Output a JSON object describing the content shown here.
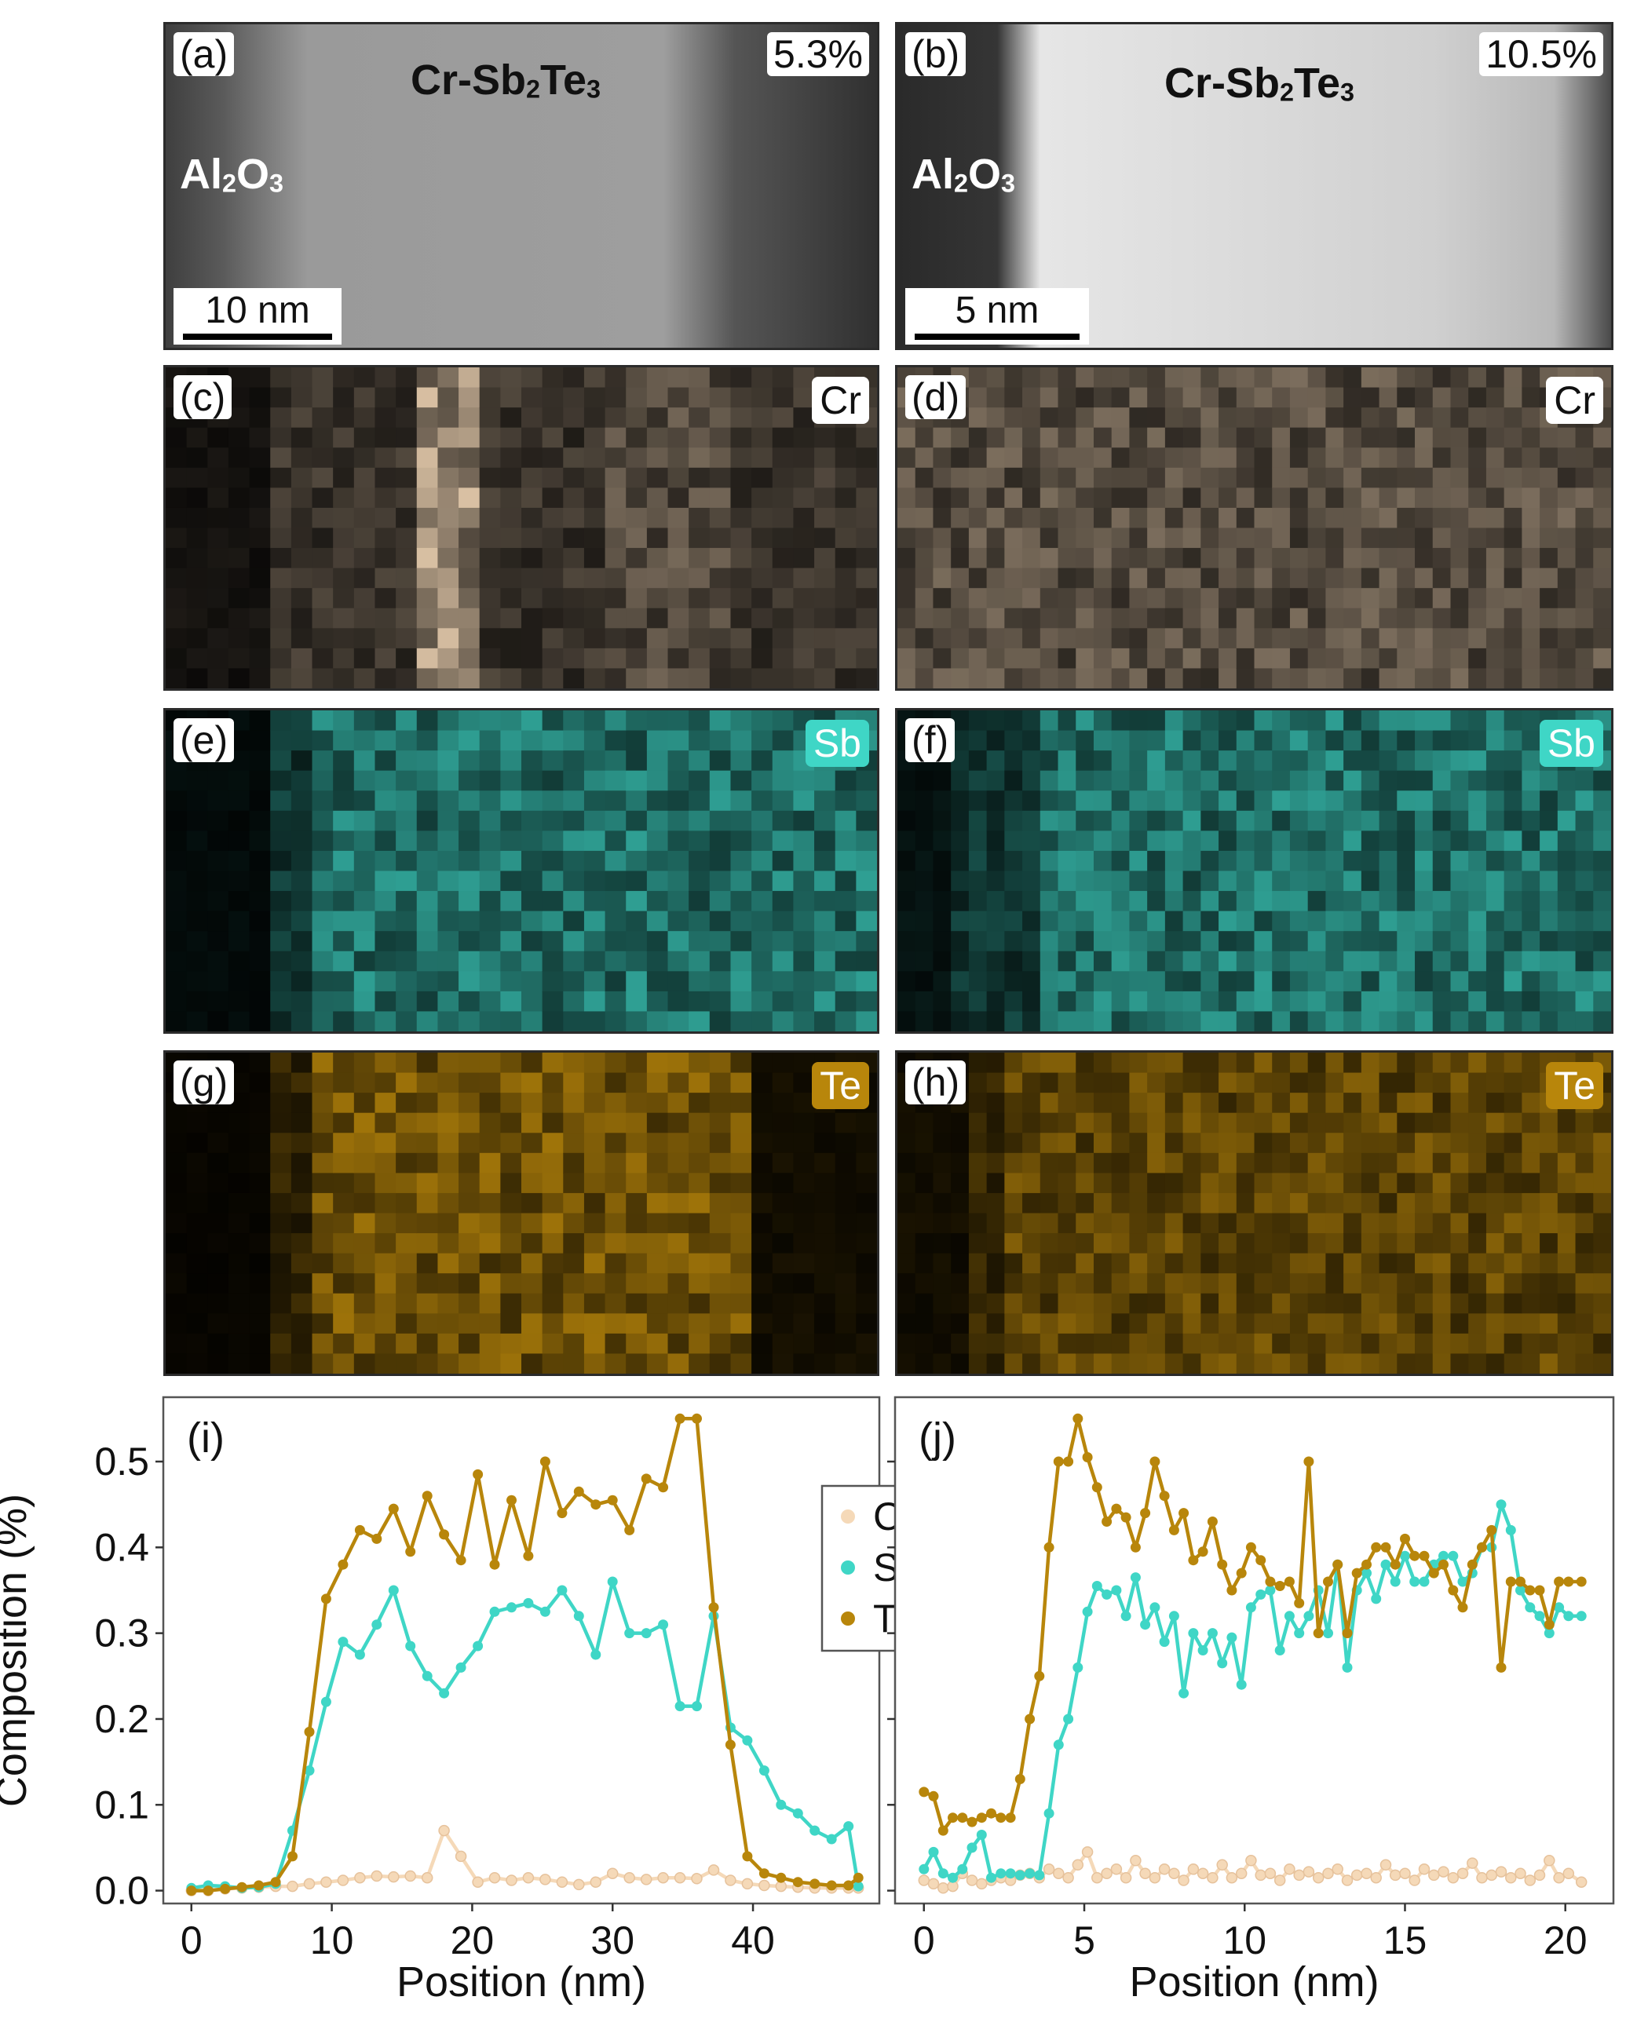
{
  "tem": {
    "a": {
      "tag": "(a)",
      "percent": "5.3%",
      "film": "Cr-Sb",
      "film_sub1": "2",
      "film_mid": "Te",
      "film_sub2": "3",
      "oxide": "Al",
      "oxide_sub1": "2",
      "oxide_mid": "O",
      "oxide_sub2": "3",
      "scale": "10 nm"
    },
    "b": {
      "tag": "(b)",
      "percent": "10.5%",
      "film": "Cr-Sb",
      "film_sub1": "2",
      "film_mid": "Te",
      "film_sub2": "3",
      "oxide": "Al",
      "oxide_sub1": "2",
      "oxide_mid": "O",
      "oxide_sub2": "3",
      "scale": "5 nm"
    }
  },
  "maps": {
    "c": {
      "tag": "(c)",
      "element": "Cr"
    },
    "d": {
      "tag": "(d)",
      "element": "Cr"
    },
    "e": {
      "tag": "(e)",
      "element": "Sb"
    },
    "f": {
      "tag": "(f)",
      "element": "Sb"
    },
    "g": {
      "tag": "(g)",
      "element": "Te"
    },
    "h": {
      "tag": "(h)",
      "element": "Te"
    }
  },
  "colors": {
    "Cr": "#f5d9b8",
    "Sb": "#3fd6c6",
    "Te": "#b8860b"
  },
  "chart_data": [
    {
      "type": "line",
      "panel_label": "(i)",
      "xlabel": "Position (nm)",
      "ylabel": "Composition (%)",
      "xlim": [
        -2,
        49
      ],
      "ylim": [
        -0.015,
        0.575
      ],
      "xticks": [
        0,
        10,
        20,
        30,
        40
      ],
      "yticks": [
        0.0,
        0.1,
        0.2,
        0.3,
        0.4,
        0.5
      ],
      "ytick_labels": [
        "0.0",
        "0.1",
        "0.2",
        "0.3",
        "0.4",
        "0.5"
      ],
      "legend": {
        "position": "top-right",
        "entries": [
          "Cr",
          "Sb",
          "Te"
        ]
      },
      "series": [
        {
          "name": "Cr",
          "color": "#f5d9b8",
          "x": [
            0,
            1.2,
            2.4,
            3.6,
            4.8,
            6.0,
            7.2,
            8.4,
            9.6,
            10.8,
            12.0,
            13.2,
            14.4,
            15.6,
            16.8,
            18.0,
            19.2,
            20.4,
            21.6,
            22.8,
            24.0,
            25.2,
            26.4,
            27.6,
            28.8,
            30.0,
            31.2,
            32.4,
            33.6,
            34.8,
            36.0,
            37.2,
            38.4,
            39.6,
            40.8,
            42.0,
            43.2,
            44.4,
            45.6,
            46.8,
            47.5
          ],
          "y": [
            0.0,
            0.0,
            0.002,
            0.003,
            0.004,
            0.005,
            0.005,
            0.008,
            0.01,
            0.012,
            0.015,
            0.017,
            0.016,
            0.017,
            0.015,
            0.07,
            0.04,
            0.01,
            0.015,
            0.012,
            0.015,
            0.013,
            0.01,
            0.007,
            0.01,
            0.02,
            0.015,
            0.013,
            0.015,
            0.015,
            0.014,
            0.024,
            0.012,
            0.008,
            0.006,
            0.005,
            0.004,
            0.003,
            0.003,
            0.003,
            0.003
          ]
        },
        {
          "name": "Sb",
          "color": "#3fd6c6",
          "x": [
            0,
            1.2,
            2.4,
            3.6,
            4.8,
            6.0,
            7.2,
            8.4,
            9.6,
            10.8,
            12.0,
            13.2,
            14.4,
            15.6,
            16.8,
            18.0,
            19.2,
            20.4,
            21.6,
            22.8,
            24.0,
            25.2,
            26.4,
            27.6,
            28.8,
            30.0,
            31.2,
            32.4,
            33.6,
            34.8,
            36.0,
            37.2,
            38.4,
            39.6,
            40.8,
            42.0,
            43.2,
            44.4,
            45.6,
            46.8,
            47.5
          ],
          "y": [
            0.003,
            0.006,
            0.005,
            0.003,
            0.004,
            0.008,
            0.07,
            0.14,
            0.22,
            0.29,
            0.275,
            0.31,
            0.35,
            0.285,
            0.25,
            0.23,
            0.26,
            0.285,
            0.325,
            0.33,
            0.335,
            0.325,
            0.35,
            0.32,
            0.275,
            0.36,
            0.3,
            0.3,
            0.31,
            0.215,
            0.215,
            0.32,
            0.19,
            0.175,
            0.14,
            0.1,
            0.09,
            0.07,
            0.06,
            0.075,
            0.005
          ]
        },
        {
          "name": "Te",
          "color": "#b8860b",
          "x": [
            0,
            1.2,
            2.4,
            3.6,
            4.8,
            6.0,
            7.2,
            8.4,
            9.6,
            10.8,
            12.0,
            13.2,
            14.4,
            15.6,
            16.8,
            18.0,
            19.2,
            20.4,
            21.6,
            22.8,
            24.0,
            25.2,
            26.4,
            27.6,
            28.8,
            30.0,
            31.2,
            32.4,
            33.6,
            34.8,
            36.0,
            37.2,
            38.4,
            39.6,
            40.8,
            42.0,
            43.2,
            44.4,
            45.6,
            46.8,
            47.5
          ],
          "y": [
            0.0,
            0.0,
            0.002,
            0.004,
            0.006,
            0.01,
            0.04,
            0.185,
            0.34,
            0.38,
            0.42,
            0.41,
            0.445,
            0.395,
            0.46,
            0.415,
            0.385,
            0.485,
            0.38,
            0.455,
            0.39,
            0.5,
            0.44,
            0.465,
            0.45,
            0.455,
            0.42,
            0.48,
            0.47,
            0.55,
            0.55,
            0.33,
            0.17,
            0.04,
            0.02,
            0.015,
            0.01,
            0.008,
            0.006,
            0.006,
            0.015
          ]
        }
      ]
    },
    {
      "type": "line",
      "panel_label": "(j)",
      "xlabel": "Position (nm)",
      "ylabel": "",
      "xlim": [
        -0.9,
        21.5
      ],
      "ylim": [
        -0.015,
        0.575
      ],
      "xticks": [
        0,
        5,
        10,
        15,
        20
      ],
      "yticks": [
        0.0,
        0.1,
        0.2,
        0.3,
        0.4,
        0.5
      ],
      "legend": {
        "position": "none",
        "entries": []
      },
      "series": [
        {
          "name": "Cr",
          "color": "#f5d9b8",
          "x": [
            0,
            0.3,
            0.6,
            0.9,
            1.2,
            1.5,
            1.8,
            2.1,
            2.4,
            2.7,
            3.0,
            3.3,
            3.6,
            3.9,
            4.2,
            4.5,
            4.8,
            5.1,
            5.4,
            5.7,
            6.0,
            6.3,
            6.6,
            6.9,
            7.2,
            7.5,
            7.8,
            8.1,
            8.4,
            8.7,
            9.0,
            9.3,
            9.6,
            9.9,
            10.2,
            10.5,
            10.8,
            11.1,
            11.4,
            11.7,
            12.0,
            12.3,
            12.6,
            12.9,
            13.2,
            13.5,
            13.8,
            14.1,
            14.4,
            14.7,
            15.0,
            15.3,
            15.6,
            15.9,
            16.2,
            16.5,
            16.8,
            17.1,
            17.4,
            17.7,
            18.0,
            18.3,
            18.6,
            18.9,
            19.2,
            19.5,
            19.8,
            20.1,
            20.5
          ],
          "y": [
            0.012,
            0.008,
            0.003,
            0.005,
            0.02,
            0.012,
            0.008,
            0.012,
            0.015,
            0.012,
            0.018,
            0.02,
            0.015,
            0.025,
            0.02,
            0.015,
            0.03,
            0.045,
            0.015,
            0.02,
            0.025,
            0.015,
            0.035,
            0.02,
            0.015,
            0.025,
            0.02,
            0.012,
            0.025,
            0.02,
            0.015,
            0.03,
            0.015,
            0.02,
            0.035,
            0.018,
            0.02,
            0.012,
            0.025,
            0.018,
            0.022,
            0.015,
            0.02,
            0.025,
            0.012,
            0.018,
            0.02,
            0.015,
            0.03,
            0.018,
            0.02,
            0.012,
            0.025,
            0.018,
            0.022,
            0.015,
            0.02,
            0.032,
            0.015,
            0.018,
            0.022,
            0.015,
            0.02,
            0.012,
            0.018,
            0.035,
            0.015,
            0.02,
            0.01
          ]
        },
        {
          "name": "Sb",
          "color": "#3fd6c6",
          "x": [
            0,
            0.3,
            0.6,
            0.9,
            1.2,
            1.5,
            1.8,
            2.1,
            2.4,
            2.7,
            3.0,
            3.3,
            3.6,
            3.9,
            4.2,
            4.5,
            4.8,
            5.1,
            5.4,
            5.7,
            6.0,
            6.3,
            6.6,
            6.9,
            7.2,
            7.5,
            7.8,
            8.1,
            8.4,
            8.7,
            9.0,
            9.3,
            9.6,
            9.9,
            10.2,
            10.5,
            10.8,
            11.1,
            11.4,
            11.7,
            12.0,
            12.3,
            12.6,
            12.9,
            13.2,
            13.5,
            13.8,
            14.1,
            14.4,
            14.7,
            15.0,
            15.3,
            15.6,
            15.9,
            16.2,
            16.5,
            16.8,
            17.1,
            17.4,
            17.7,
            18.0,
            18.3,
            18.6,
            18.9,
            19.2,
            19.5,
            19.8,
            20.1,
            20.5
          ],
          "y": [
            0.025,
            0.045,
            0.02,
            0.015,
            0.025,
            0.05,
            0.065,
            0.015,
            0.02,
            0.02,
            0.018,
            0.02,
            0.018,
            0.09,
            0.17,
            0.2,
            0.26,
            0.325,
            0.355,
            0.345,
            0.35,
            0.32,
            0.365,
            0.31,
            0.33,
            0.29,
            0.32,
            0.23,
            0.3,
            0.28,
            0.3,
            0.265,
            0.295,
            0.24,
            0.33,
            0.345,
            0.35,
            0.28,
            0.32,
            0.3,
            0.32,
            0.35,
            0.3,
            0.38,
            0.26,
            0.35,
            0.37,
            0.34,
            0.38,
            0.36,
            0.39,
            0.36,
            0.36,
            0.38,
            0.39,
            0.39,
            0.36,
            0.37,
            0.4,
            0.4,
            0.45,
            0.42,
            0.35,
            0.33,
            0.32,
            0.3,
            0.33,
            0.32,
            0.32
          ]
        },
        {
          "name": "Te",
          "color": "#b8860b",
          "x": [
            0,
            0.3,
            0.6,
            0.9,
            1.2,
            1.5,
            1.8,
            2.1,
            2.4,
            2.7,
            3.0,
            3.3,
            3.6,
            3.9,
            4.2,
            4.5,
            4.8,
            5.1,
            5.4,
            5.7,
            6.0,
            6.3,
            6.6,
            6.9,
            7.2,
            7.5,
            7.8,
            8.1,
            8.4,
            8.7,
            9.0,
            9.3,
            9.6,
            9.9,
            10.2,
            10.5,
            10.8,
            11.1,
            11.4,
            11.7,
            12.0,
            12.3,
            12.6,
            12.9,
            13.2,
            13.5,
            13.8,
            14.1,
            14.4,
            14.7,
            15.0,
            15.3,
            15.6,
            15.9,
            16.2,
            16.5,
            16.8,
            17.1,
            17.4,
            17.7,
            18.0,
            18.3,
            18.6,
            18.9,
            19.2,
            19.5,
            19.8,
            20.1,
            20.5
          ],
          "y": [
            0.115,
            0.11,
            0.07,
            0.085,
            0.085,
            0.08,
            0.085,
            0.09,
            0.085,
            0.085,
            0.13,
            0.2,
            0.25,
            0.4,
            0.5,
            0.5,
            0.55,
            0.505,
            0.47,
            0.43,
            0.445,
            0.435,
            0.4,
            0.44,
            0.5,
            0.46,
            0.42,
            0.44,
            0.385,
            0.395,
            0.43,
            0.38,
            0.35,
            0.37,
            0.4,
            0.385,
            0.36,
            0.355,
            0.36,
            0.335,
            0.5,
            0.3,
            0.36,
            0.38,
            0.3,
            0.37,
            0.38,
            0.4,
            0.4,
            0.38,
            0.41,
            0.39,
            0.39,
            0.37,
            0.38,
            0.35,
            0.33,
            0.38,
            0.4,
            0.42,
            0.26,
            0.36,
            0.36,
            0.35,
            0.35,
            0.31,
            0.36,
            0.36,
            0.36
          ]
        }
      ]
    }
  ]
}
